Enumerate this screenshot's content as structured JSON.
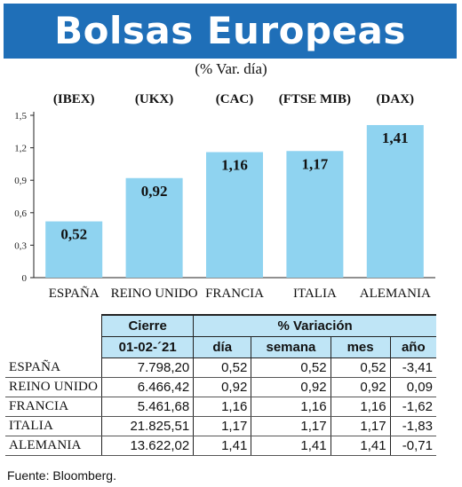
{
  "title": "Bolsas Europeas",
  "subtitle": "(% Var. día)",
  "chart_data": {
    "type": "bar",
    "indices": [
      "(IBEX)",
      "(UKX)",
      "(CAC)",
      "(FTSE MIB)",
      "(DAX)"
    ],
    "categories": [
      "ESPAÑA",
      "REINO UNIDO",
      "FRANCIA",
      "ITALIA",
      "ALEMANIA"
    ],
    "values": [
      0.52,
      0.92,
      1.16,
      1.17,
      1.41
    ],
    "value_labels": [
      "0,52",
      "0,92",
      "1,16",
      "1,17",
      "1,41"
    ],
    "yticks": [
      "0",
      "0,3",
      "0,6",
      "0,9",
      "1,2",
      "1,5"
    ],
    "ylim": [
      0,
      1.5
    ],
    "bar_color": "#8fd3f0"
  },
  "table": {
    "header1": {
      "cierre": "Cierre",
      "variacion": "% Variación"
    },
    "header2": {
      "date": "01-02-´21",
      "dia": "día",
      "semana": "semana",
      "mes": "mes",
      "ano": "año"
    },
    "rows": [
      {
        "name": "ESPAÑA",
        "cierre": "7.798,20",
        "dia": "0,52",
        "semana": "0,52",
        "mes": "0,52",
        "ano": "-3,41"
      },
      {
        "name": "REINO UNIDO",
        "cierre": "6.466,42",
        "dia": "0,92",
        "semana": "0,92",
        "mes": "0,92",
        "ano": "0,09"
      },
      {
        "name": "FRANCIA",
        "cierre": "5.461,68",
        "dia": "1,16",
        "semana": "1,16",
        "mes": "1,16",
        "ano": "-1,62"
      },
      {
        "name": "ITALIA",
        "cierre": "21.825,51",
        "dia": "1,17",
        "semana": "1,17",
        "mes": "1,17",
        "ano": "-1,83"
      },
      {
        "name": "ALEMANIA",
        "cierre": "13.622,02",
        "dia": "1,41",
        "semana": "1,41",
        "mes": "1,41",
        "ano": "-0,71"
      }
    ]
  },
  "source": "Fuente: Bloomberg.",
  "colors": {
    "banner": "#1f6fb8",
    "header_fill": "#bfe5f6"
  }
}
